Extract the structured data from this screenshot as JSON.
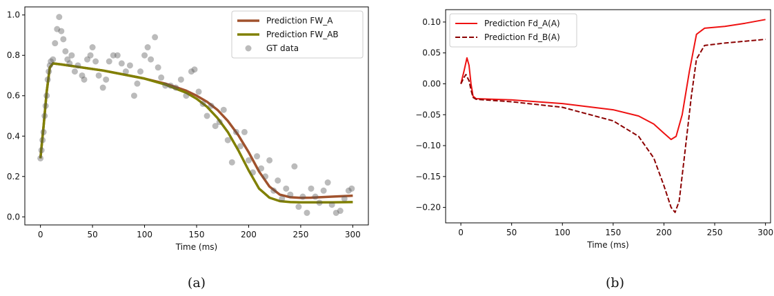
{
  "chart_data": [
    {
      "type": "line",
      "caption": "(a)",
      "xlabel": "Time (ms)",
      "xlim": [
        -15,
        315
      ],
      "xticks": [
        0,
        50,
        100,
        150,
        200,
        250,
        300
      ],
      "ylim": [
        -0.04,
        1.04
      ],
      "yticks": [
        {
          "value": 0,
          "label": "0.0"
        },
        0.2,
        0.4,
        0.6,
        0.8,
        {
          "value": 1,
          "label": "1.0"
        }
      ],
      "legend": "upper right",
      "series": [
        {
          "name": "Prediction FW_A",
          "color": "#a0522d",
          "style": "solid",
          "x": [
            0,
            3,
            6,
            9,
            12,
            20,
            40,
            60,
            80,
            100,
            120,
            140,
            150,
            160,
            170,
            180,
            190,
            200,
            210,
            220,
            230,
            240,
            250,
            260,
            280,
            300
          ],
          "values": [
            0.29,
            0.45,
            0.62,
            0.74,
            0.76,
            0.755,
            0.74,
            0.725,
            0.705,
            0.685,
            0.66,
            0.625,
            0.6,
            0.57,
            0.53,
            0.475,
            0.405,
            0.32,
            0.225,
            0.15,
            0.11,
            0.097,
            0.094,
            0.095,
            0.1,
            0.105
          ]
        },
        {
          "name": "Prediction FW_AB",
          "color": "#808000",
          "style": "solid",
          "x": [
            0,
            3,
            6,
            9,
            12,
            20,
            40,
            60,
            80,
            100,
            120,
            140,
            150,
            160,
            170,
            180,
            190,
            200,
            210,
            220,
            230,
            240,
            250,
            260,
            280,
            300
          ],
          "values": [
            0.29,
            0.45,
            0.62,
            0.74,
            0.76,
            0.755,
            0.74,
            0.725,
            0.705,
            0.685,
            0.655,
            0.615,
            0.585,
            0.545,
            0.49,
            0.42,
            0.33,
            0.23,
            0.14,
            0.095,
            0.078,
            0.073,
            0.072,
            0.072,
            0.072,
            0.073
          ]
        },
        {
          "name": "GT data",
          "color": "#555555",
          "style": "points",
          "x": [
            0,
            1,
            2,
            3,
            4,
            5,
            6,
            7,
            8,
            9,
            10,
            12,
            14,
            16,
            18,
            20,
            22,
            24,
            26,
            28,
            30,
            33,
            36,
            40,
            42,
            45,
            48,
            50,
            53,
            56,
            60,
            63,
            66,
            70,
            74,
            78,
            82,
            86,
            90,
            93,
            96,
            100,
            103,
            106,
            110,
            113,
            116,
            120,
            125,
            130,
            135,
            140,
            145,
            148,
            152,
            156,
            160,
            164,
            168,
            172,
            176,
            180,
            184,
            188,
            192,
            196,
            200,
            204,
            208,
            212,
            216,
            220,
            224,
            228,
            232,
            236,
            240,
            244,
            248,
            252,
            256,
            260,
            264,
            268,
            272,
            276,
            280,
            284,
            288,
            292,
            296,
            299
          ],
          "values": [
            0.29,
            0.33,
            0.38,
            0.42,
            0.5,
            0.55,
            0.6,
            0.68,
            0.72,
            0.75,
            0.77,
            0.78,
            0.86,
            0.93,
            0.99,
            0.92,
            0.88,
            0.82,
            0.78,
            0.76,
            0.8,
            0.72,
            0.75,
            0.7,
            0.68,
            0.78,
            0.8,
            0.84,
            0.77,
            0.7,
            0.64,
            0.68,
            0.77,
            0.8,
            0.8,
            0.76,
            0.72,
            0.75,
            0.6,
            0.66,
            0.72,
            0.8,
            0.84,
            0.78,
            0.89,
            0.74,
            0.69,
            0.65,
            0.65,
            0.64,
            0.68,
            0.6,
            0.72,
            0.73,
            0.62,
            0.56,
            0.5,
            0.55,
            0.45,
            0.47,
            0.53,
            0.38,
            0.27,
            0.42,
            0.35,
            0.42,
            0.28,
            0.22,
            0.3,
            0.24,
            0.2,
            0.28,
            0.13,
            0.18,
            0.09,
            0.14,
            0.11,
            0.25,
            0.05,
            0.1,
            0.02,
            0.14,
            0.1,
            0.07,
            0.13,
            0.17,
            0.06,
            0.02,
            0.03,
            0.09,
            0.13,
            0.14
          ]
        }
      ]
    },
    {
      "type": "line",
      "caption": "(b)",
      "xlabel": "Time (ms)",
      "xlim": [
        -15,
        305
      ],
      "xticks": [
        0,
        50,
        100,
        150,
        200,
        250,
        300
      ],
      "ylim": [
        -0.225,
        0.12
      ],
      "yticks": [
        {
          "value": -0.2,
          "label": "−0.20"
        },
        {
          "value": -0.15,
          "label": "−0.15"
        },
        {
          "value": -0.1,
          "label": "−0.10"
        },
        {
          "value": -0.05,
          "label": "−0.05"
        },
        {
          "value": 0,
          "label": "0.00"
        },
        0.05,
        {
          "value": 0.1,
          "label": "0.10"
        }
      ],
      "legend": "upper left",
      "series": [
        {
          "name": "Prediction Fd_A(A)",
          "color": "#ee1111",
          "style": "solid",
          "x": [
            0,
            3,
            6,
            8,
            10,
            12,
            15,
            50,
            100,
            150,
            175,
            190,
            200,
            207,
            212,
            218,
            225,
            232,
            240,
            260,
            280,
            300
          ],
          "values": [
            0,
            0.02,
            0.042,
            0.03,
            0,
            -0.02,
            -0.024,
            -0.026,
            -0.032,
            -0.042,
            -0.052,
            -0.065,
            -0.08,
            -0.09,
            -0.085,
            -0.05,
            0.02,
            0.08,
            0.09,
            0.093,
            0.098,
            0.104
          ]
        },
        {
          "name": "Prediction Fd_B(A)",
          "color": "#8b0000",
          "style": "dashed",
          "x": [
            0,
            3,
            5,
            8,
            10,
            12,
            15,
            50,
            100,
            150,
            175,
            190,
            200,
            207,
            211,
            215,
            220,
            227,
            232,
            240,
            260,
            280,
            300
          ],
          "values": [
            0,
            0.01,
            0.015,
            0.005,
            -0.01,
            -0.022,
            -0.025,
            -0.029,
            -0.038,
            -0.06,
            -0.085,
            -0.12,
            -0.165,
            -0.2,
            -0.208,
            -0.19,
            -0.12,
            -0.02,
            0.04,
            0.062,
            0.066,
            0.069,
            0.072
          ]
        }
      ]
    }
  ]
}
